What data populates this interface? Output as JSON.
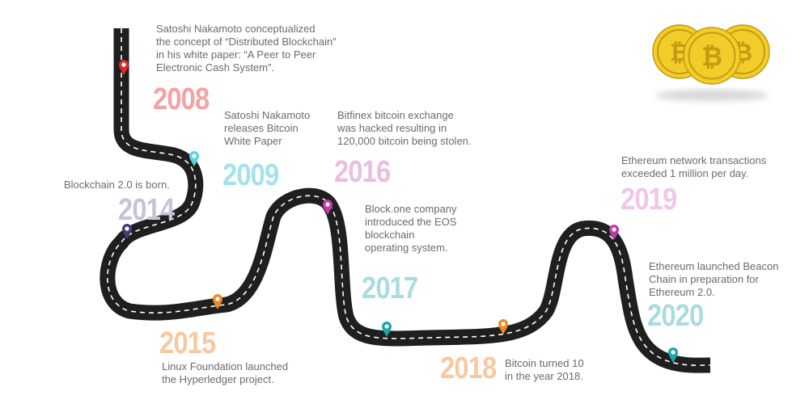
{
  "colors": {
    "road": "#1f1f1f",
    "dash": "#ffffff",
    "coin": "#f2cd2a",
    "coin_dark": "#c49b13"
  },
  "coin_symbol": "₿",
  "events": [
    {
      "key": "e2008",
      "year": "2008",
      "year_color": "#f4a3a3",
      "pin_color": "#e02a2a",
      "text": "Satoshi Nakamoto conceptualized\nthe concept of “Distributed Blockchain”\nin his white paper: “A Peer to Peer\nElectronic Cash System”."
    },
    {
      "key": "e2009",
      "year": "2009",
      "year_color": "#a3e3ec",
      "pin_color": "#5fd3e0",
      "text": "Satoshi Nakamoto\nreleases Bitcoin\nWhite Paper"
    },
    {
      "key": "e2014",
      "year": "2014",
      "year_color": "#c7c3d8",
      "pin_color": "#4a3a7a",
      "text": "Blockchain 2.0 is born."
    },
    {
      "key": "e2015",
      "year": "2015",
      "year_color": "#f8c9a0",
      "pin_color": "#f08a24",
      "text": "Linux Foundation launched\nthe Hyperledger project."
    },
    {
      "key": "e2016",
      "year": "2016",
      "year_color": "#e8bfe0",
      "pin_color": "#c23aa8",
      "text": "Bitfinex bitcoin exchange\nwas hacked resulting in\n120,000 bitcoin being stolen."
    },
    {
      "key": "e2017",
      "year": "2017",
      "year_color": "#a9dcdf",
      "pin_color": "#1aa8a8",
      "text": "Block.one company\nintroduced the EOS\nblockchain\noperating system."
    },
    {
      "key": "e2018",
      "year": "2018",
      "year_color": "#f8c9a0",
      "pin_color": "#f08a24",
      "text": "Bitcoin turned 10\nin the year 2018."
    },
    {
      "key": "e2019",
      "year": "2019",
      "year_color": "#eec7ea",
      "pin_color": "#c23aa8",
      "text": "Ethereum network transactions\nexceeded 1 million per day."
    },
    {
      "key": "e2020",
      "year": "2020",
      "year_color": "#a9dcdf",
      "pin_color": "#1aa8a8",
      "text": "Ethereum launched Beacon\nChain in preparation for\nEthereum 2.0."
    }
  ]
}
